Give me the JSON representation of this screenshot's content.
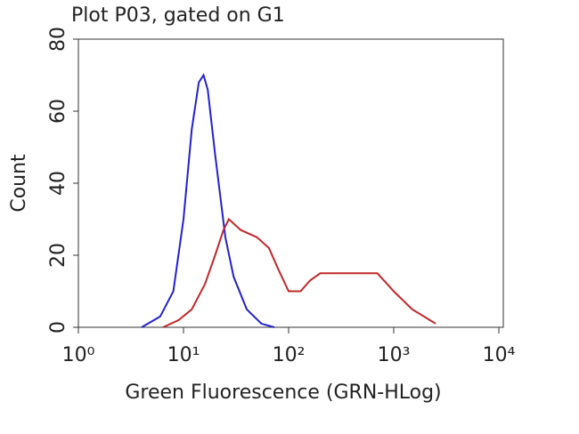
{
  "chart_data": {
    "type": "line",
    "title": "Plot P03, gated on G1",
    "xlabel": "Green Fluorescence (GRN-HLog)",
    "ylabel": "Count",
    "xscale": "log",
    "xlim": [
      1,
      10000
    ],
    "xticks": [
      {
        "value": 1,
        "label": "10⁰"
      },
      {
        "value": 10,
        "label": "10¹"
      },
      {
        "value": 100,
        "label": "10²"
      },
      {
        "value": 1000,
        "label": "10³"
      },
      {
        "value": 10000,
        "label": "10⁴"
      }
    ],
    "ylim": [
      0,
      80
    ],
    "yticks": [
      0,
      20,
      40,
      60,
      80
    ],
    "series": [
      {
        "color": "#2222cc",
        "x": [
          4,
          6,
          8,
          10,
          12,
          14,
          15.5,
          17,
          20,
          25,
          30,
          40,
          55,
          73
        ],
        "values": [
          0,
          3,
          10,
          30,
          55,
          68,
          70,
          66,
          48,
          25,
          14,
          5,
          1,
          0
        ]
      },
      {
        "color": "#c0282a",
        "x": [
          6.4,
          9,
          12,
          16,
          20,
          24,
          27,
          35,
          50,
          65,
          80,
          100,
          130,
          160,
          200,
          300,
          500,
          700,
          1000,
          1500,
          2500
        ],
        "values": [
          0,
          2,
          5,
          12,
          20,
          27,
          30,
          27,
          25,
          22,
          16,
          10,
          10,
          13,
          15,
          15,
          15,
          15,
          10,
          5,
          1
        ]
      }
    ]
  }
}
